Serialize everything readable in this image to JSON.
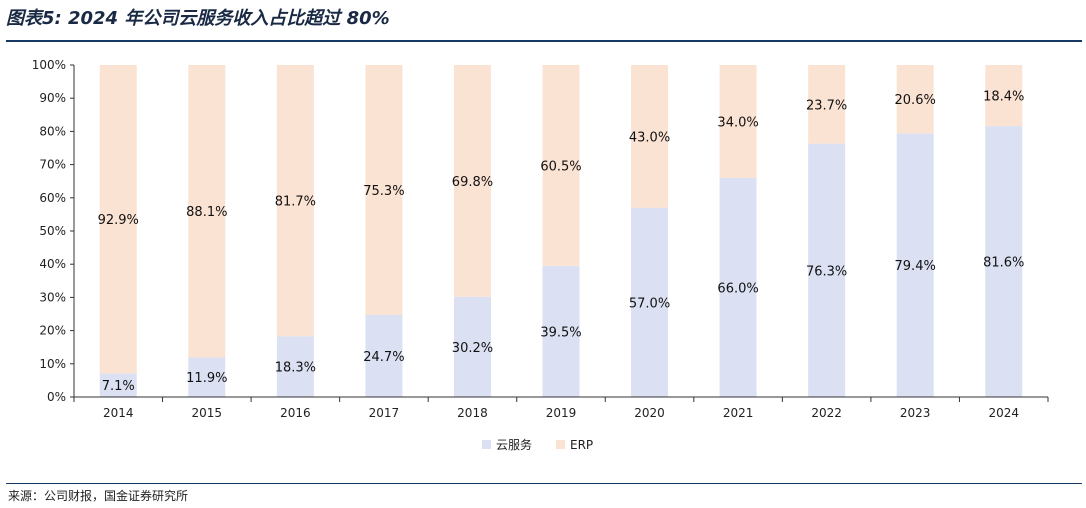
{
  "title": "图表5:  2024 年公司云服务收入占比超过 80%",
  "source": "来源：公司财报，国金证券研究所",
  "chart_data": {
    "type": "bar",
    "stacked": true,
    "categories": [
      "2014",
      "2015",
      "2016",
      "2017",
      "2018",
      "2019",
      "2020",
      "2021",
      "2022",
      "2023",
      "2024"
    ],
    "series": [
      {
        "name": "云服务",
        "color": "#dbe1f2",
        "values": [
          7.1,
          11.9,
          18.3,
          24.7,
          30.2,
          39.5,
          57.0,
          66.0,
          76.3,
          79.4,
          81.6
        ],
        "labels": [
          "7.1%",
          "11.9%",
          "18.3%",
          "24.7%",
          "30.2%",
          "39.5%",
          "57.0%",
          "66.0%",
          "76.3%",
          "79.4%",
          "81.6%"
        ]
      },
      {
        "name": "ERP",
        "color": "#fbe3d4",
        "values": [
          92.9,
          88.1,
          81.7,
          75.3,
          69.8,
          60.5,
          43.0,
          34.0,
          23.7,
          20.6,
          18.4
        ],
        "labels": [
          "92.9%",
          "88.1%",
          "81.7%",
          "75.3%",
          "69.8%",
          "60.5%",
          "43.0%",
          "34.0%",
          "23.7%",
          "20.6%",
          "18.4%"
        ]
      }
    ],
    "yticks": [
      "0%",
      "10%",
      "20%",
      "30%",
      "40%",
      "50%",
      "60%",
      "70%",
      "80%",
      "90%",
      "100%"
    ],
    "ylim": [
      0,
      100
    ],
    "grid": false,
    "legend_position": "bottom-center"
  }
}
